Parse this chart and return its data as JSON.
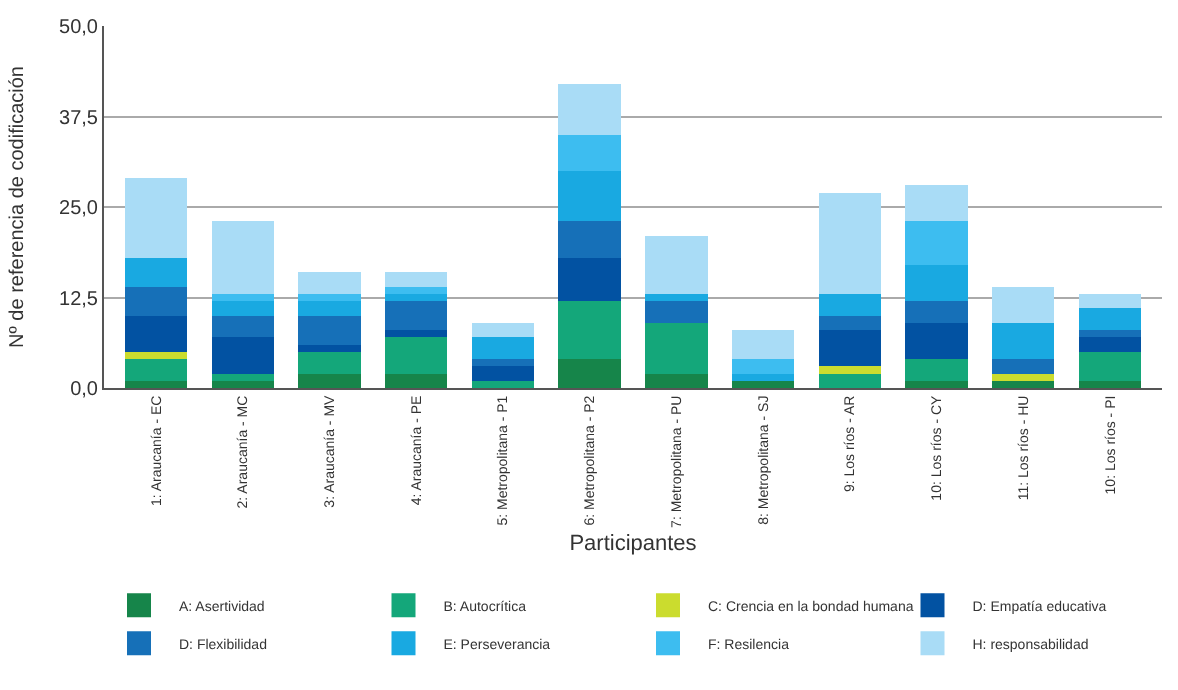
{
  "chart_data": {
    "type": "bar",
    "stacked": true,
    "xlabel": "Participantes",
    "ylabel": "Nº de referencia de codificación",
    "categories": [
      "1: Araucanía - EC",
      "2: Araucanía - MC",
      "3: Araucanía - MV",
      "4: Araucanía - PE",
      "5: Metropolitana - P1",
      "6: Metropolitana - P2",
      "7: Metropolitana - PU",
      "8: Metropolitana - SJ",
      "9: Los ríos - AR",
      "10: Los ríos - CY",
      "11: Los ríos - HU",
      "10: Los ríos - PI"
    ],
    "series": [
      {
        "name": "A: Asertividad",
        "color": "#16854a",
        "values": [
          1,
          1,
          2,
          2,
          0,
          4,
          2,
          1,
          0,
          1,
          1,
          1
        ]
      },
      {
        "name": "B: Autocrítica",
        "color": "#14a77a",
        "values": [
          3,
          1,
          3,
          5,
          1,
          8,
          7,
          0,
          2,
          3,
          0,
          4
        ]
      },
      {
        "name": "C: Crencia en la bondad humana",
        "color": "#cbdc2e",
        "values": [
          1,
          0,
          0,
          0,
          0,
          0,
          0,
          0,
          1,
          0,
          1,
          0
        ]
      },
      {
        "name": "D: Empatía educativa",
        "color": "#0252a2",
        "values": [
          5,
          5,
          1,
          1,
          2,
          6,
          0,
          0,
          5,
          5,
          0,
          2
        ]
      },
      {
        "name": "D: Flexibilidad",
        "color": "#1670b8",
        "values": [
          4,
          3,
          4,
          4,
          1,
          5,
          3,
          0,
          2,
          3,
          2,
          1
        ]
      },
      {
        "name": "E: Perseverancia",
        "color": "#19a9e1",
        "values": [
          4,
          2,
          2,
          1,
          3,
          7,
          1,
          1,
          3,
          5,
          5,
          3
        ]
      },
      {
        "name": "F: Resilencia",
        "color": "#3dbdf0",
        "values": [
          0,
          1,
          1,
          1,
          0,
          5,
          0,
          2,
          0,
          6,
          0,
          0
        ]
      },
      {
        "name": "H: responsabilidad",
        "color": "#a9dcf6",
        "values": [
          11,
          10,
          3,
          2,
          2,
          7,
          8,
          4,
          14,
          5,
          5,
          2
        ]
      }
    ],
    "ylim": [
      0,
      50
    ],
    "yticks": [
      {
        "value": 0,
        "label": "0,0"
      },
      {
        "value": 12.5,
        "label": "12,5"
      },
      {
        "value": 25,
        "label": "25,0"
      },
      {
        "value": 37.5,
        "label": "37,5"
      },
      {
        "value": 50,
        "label": "50,0"
      }
    ],
    "grid": "y",
    "legend": "bottom"
  }
}
